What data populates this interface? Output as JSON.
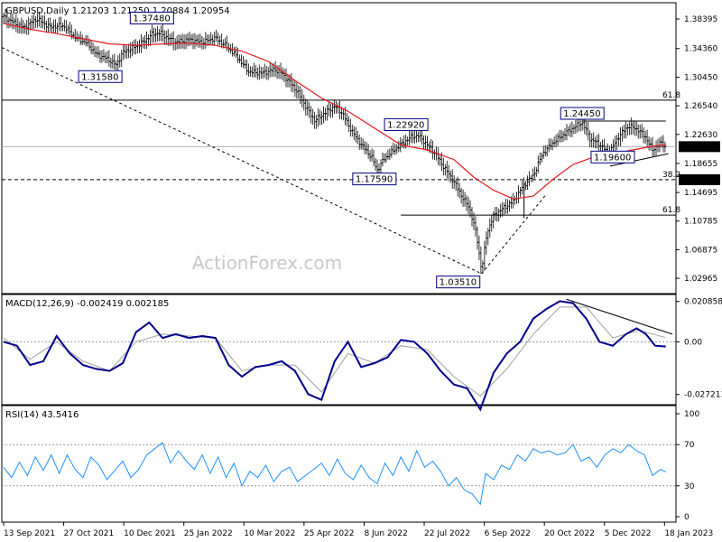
{
  "header": {
    "main_title": "GBPUSD,Daily  1.21203 1.21250 1.20884 1.20954",
    "macd_title": "MACD(12,26,9) -0.002419 0.002185",
    "rsi_title": "RSI(14) 43.5416"
  },
  "watermark": "ActionForex.com",
  "colors": {
    "price": "#000000",
    "ma": "#e31a1c",
    "macd_main": "#00008b",
    "macd_signal": "#a0a0a0",
    "rsi": "#1e90ff",
    "trend": "#000000",
    "current_badge_bg": "#000000",
    "label_border": "#000080"
  },
  "chart_data": [
    {
      "type": "line",
      "panel": "price",
      "title": "GBPUSD,Daily",
      "ylim": [
        1.01,
        1.405
      ],
      "y_ticks": [
        "1.38395",
        "1.34360",
        "1.30450",
        "1.26540",
        "1.22630",
        "1.18655",
        "1.14695",
        "1.10785",
        "1.06875",
        "1.02965"
      ],
      "x_ticks": [
        "13 Sep 2021",
        "27 Oct 2021",
        "10 Dec 2021",
        "25 Jan 2022",
        "10 Mar 2022",
        "25 Apr 2022",
        "8 Jun 2022",
        "22 Jul 2022",
        "6 Sep 2022",
        "20 Oct 2022",
        "5 Dec 2022",
        "18 Jan 2023"
      ],
      "x_range_days": [
        0,
        505
      ],
      "price_series": [
        [
          0,
          1.387
        ],
        [
          15,
          1.372
        ],
        [
          25,
          1.384
        ],
        [
          35,
          1.373
        ],
        [
          45,
          1.375
        ],
        [
          55,
          1.357
        ],
        [
          62,
          1.352
        ],
        [
          70,
          1.336
        ],
        [
          78,
          1.33
        ],
        [
          85,
          1.321
        ],
        [
          90,
          1.338
        ],
        [
          98,
          1.345
        ],
        [
          105,
          1.352
        ],
        [
          112,
          1.363
        ],
        [
          118,
          1.365
        ],
        [
          124,
          1.358
        ],
        [
          130,
          1.352
        ],
        [
          140,
          1.356
        ],
        [
          150,
          1.352
        ],
        [
          160,
          1.358
        ],
        [
          168,
          1.347
        ],
        [
          175,
          1.335
        ],
        [
          185,
          1.312
        ],
        [
          195,
          1.31
        ],
        [
          205,
          1.315
        ],
        [
          210,
          1.31
        ],
        [
          215,
          1.3
        ],
        [
          222,
          1.285
        ],
        [
          228,
          1.265
        ],
        [
          235,
          1.245
        ],
        [
          242,
          1.255
        ],
        [
          250,
          1.265
        ],
        [
          256,
          1.255
        ],
        [
          260,
          1.24
        ],
        [
          266,
          1.222
        ],
        [
          272,
          1.208
        ],
        [
          278,
          1.195
        ],
        [
          282,
          1.177
        ],
        [
          287,
          1.192
        ],
        [
          293,
          1.202
        ],
        [
          300,
          1.212
        ],
        [
          307,
          1.222
        ],
        [
          313,
          1.225
        ],
        [
          320,
          1.212
        ],
        [
          326,
          1.2
        ],
        [
          333,
          1.18
        ],
        [
          340,
          1.162
        ],
        [
          346,
          1.142
        ],
        [
          352,
          1.125
        ],
        [
          357,
          1.09
        ],
        [
          361,
          1.04
        ],
        [
          365,
          1.092
        ],
        [
          370,
          1.115
        ],
        [
          377,
          1.125
        ],
        [
          385,
          1.135
        ],
        [
          392,
          1.155
        ],
        [
          400,
          1.17
        ],
        [
          407,
          1.2
        ],
        [
          415,
          1.215
        ],
        [
          422,
          1.225
        ],
        [
          430,
          1.235
        ],
        [
          437,
          1.243
        ],
        [
          443,
          1.22
        ],
        [
          450,
          1.213
        ],
        [
          457,
          1.2
        ],
        [
          465,
          1.225
        ],
        [
          472,
          1.238
        ],
        [
          479,
          1.233
        ],
        [
          485,
          1.222
        ],
        [
          490,
          1.205
        ],
        [
          496,
          1.215
        ],
        [
          500,
          1.2095
        ]
      ],
      "moving_average": [
        [
          0,
          1.378
        ],
        [
          20,
          1.37
        ],
        [
          40,
          1.364
        ],
        [
          60,
          1.357
        ],
        [
          80,
          1.35
        ],
        [
          100,
          1.348
        ],
        [
          120,
          1.35
        ],
        [
          140,
          1.351
        ],
        [
          160,
          1.348
        ],
        [
          180,
          1.34
        ],
        [
          200,
          1.326
        ],
        [
          220,
          1.3
        ],
        [
          240,
          1.276
        ],
        [
          260,
          1.258
        ],
        [
          280,
          1.235
        ],
        [
          300,
          1.212
        ],
        [
          320,
          1.205
        ],
        [
          340,
          1.192
        ],
        [
          355,
          1.168
        ],
        [
          370,
          1.15
        ],
        [
          385,
          1.138
        ],
        [
          400,
          1.142
        ],
        [
          415,
          1.165
        ],
        [
          430,
          1.185
        ],
        [
          445,
          1.195
        ],
        [
          460,
          1.2
        ],
        [
          475,
          1.205
        ],
        [
          490,
          1.21
        ],
        [
          500,
          1.212
        ]
      ],
      "annotations": [
        {
          "text": "1.37480",
          "x": 112,
          "y": 1.3748
        },
        {
          "text": "1.31580",
          "x": 73,
          "y": 1.3158
        },
        {
          "text": "1.22920",
          "x": 304,
          "y": 1.2292
        },
        {
          "text": "1.17590",
          "x": 280,
          "y": 1.1759
        },
        {
          "text": "1.03510",
          "x": 361,
          "y": 1.0351
        },
        {
          "text": "1.24450",
          "x": 437,
          "y": 1.2445
        },
        {
          "text": "1.19600",
          "x": 460,
          "y": 1.196
        }
      ],
      "levels": [
        {
          "label": "61.8",
          "value": 1.273,
          "style": "solid"
        },
        {
          "label": "38.2",
          "value": 1.1644,
          "style": "dashed"
        },
        {
          "label": "61.8",
          "value": 1.116,
          "style": "solid"
        }
      ],
      "current_price": "1.20954",
      "level_badge": "1.16440"
    },
    {
      "type": "line",
      "panel": "macd",
      "title": "MACD(12,26,9)",
      "ylim": [
        -0.032,
        0.024
      ],
      "y_ticks": [
        "0.020858",
        "0.00",
        "-0.027213"
      ],
      "macd": [
        [
          0,
          0.0
        ],
        [
          10,
          -0.002
        ],
        [
          20,
          -0.012
        ],
        [
          30,
          -0.01
        ],
        [
          40,
          0.003
        ],
        [
          50,
          -0.006
        ],
        [
          60,
          -0.012
        ],
        [
          70,
          -0.014
        ],
        [
          80,
          -0.015
        ],
        [
          90,
          -0.011
        ],
        [
          100,
          0.005
        ],
        [
          110,
          0.01
        ],
        [
          120,
          0.002
        ],
        [
          130,
          0.004
        ],
        [
          140,
          0.002
        ],
        [
          150,
          0.003
        ],
        [
          160,
          0.002
        ],
        [
          170,
          -0.012
        ],
        [
          180,
          -0.018
        ],
        [
          190,
          -0.013
        ],
        [
          200,
          -0.012
        ],
        [
          210,
          -0.01
        ],
        [
          220,
          -0.015
        ],
        [
          230,
          -0.027
        ],
        [
          240,
          -0.03
        ],
        [
          250,
          -0.01
        ],
        [
          260,
          0.0
        ],
        [
          270,
          -0.013
        ],
        [
          280,
          -0.011
        ],
        [
          290,
          -0.008
        ],
        [
          300,
          0.001
        ],
        [
          310,
          0.0
        ],
        [
          320,
          -0.006
        ],
        [
          330,
          -0.015
        ],
        [
          340,
          -0.022
        ],
        [
          350,
          -0.024
        ],
        [
          360,
          -0.035
        ],
        [
          370,
          -0.016
        ],
        [
          380,
          -0.006
        ],
        [
          390,
          0.0
        ],
        [
          400,
          0.012
        ],
        [
          410,
          0.017
        ],
        [
          420,
          0.021
        ],
        [
          430,
          0.02
        ],
        [
          440,
          0.012
        ],
        [
          450,
          0.0
        ],
        [
          460,
          -0.002
        ],
        [
          470,
          0.004
        ],
        [
          478,
          0.007
        ],
        [
          485,
          0.004
        ],
        [
          492,
          -0.002
        ],
        [
          500,
          -0.0024
        ]
      ],
      "signal": [
        [
          0,
          0.002
        ],
        [
          20,
          -0.009
        ],
        [
          40,
          0.0
        ],
        [
          60,
          -0.01
        ],
        [
          80,
          -0.015
        ],
        [
          100,
          0.0
        ],
        [
          120,
          0.004
        ],
        [
          140,
          0.003
        ],
        [
          160,
          0.002
        ],
        [
          180,
          -0.015
        ],
        [
          200,
          -0.012
        ],
        [
          220,
          -0.012
        ],
        [
          240,
          -0.026
        ],
        [
          260,
          -0.006
        ],
        [
          280,
          -0.011
        ],
        [
          300,
          -0.002
        ],
        [
          320,
          -0.004
        ],
        [
          340,
          -0.018
        ],
        [
          360,
          -0.028
        ],
        [
          380,
          -0.014
        ],
        [
          400,
          0.004
        ],
        [
          420,
          0.018
        ],
        [
          440,
          0.018
        ],
        [
          460,
          0.002
        ],
        [
          480,
          0.006
        ],
        [
          500,
          0.0022
        ]
      ]
    },
    {
      "type": "line",
      "panel": "rsi",
      "title": "RSI(14)",
      "ylim": [
        0,
        100
      ],
      "y_ticks": [
        "100",
        "70",
        "30",
        "0"
      ],
      "rsi": [
        [
          0,
          48
        ],
        [
          6,
          38
        ],
        [
          12,
          53
        ],
        [
          18,
          40
        ],
        [
          24,
          58
        ],
        [
          30,
          45
        ],
        [
          36,
          60
        ],
        [
          42,
          42
        ],
        [
          48,
          60
        ],
        [
          54,
          46
        ],
        [
          60,
          38
        ],
        [
          66,
          58
        ],
        [
          72,
          50
        ],
        [
          78,
          36
        ],
        [
          84,
          45
        ],
        [
          90,
          54
        ],
        [
          96,
          38
        ],
        [
          102,
          46
        ],
        [
          108,
          60
        ],
        [
          114,
          66
        ],
        [
          120,
          72
        ],
        [
          126,
          52
        ],
        [
          132,
          64
        ],
        [
          138,
          54
        ],
        [
          144,
          46
        ],
        [
          150,
          60
        ],
        [
          156,
          42
        ],
        [
          162,
          58
        ],
        [
          168,
          38
        ],
        [
          174,
          52
        ],
        [
          180,
          30
        ],
        [
          186,
          44
        ],
        [
          192,
          38
        ],
        [
          198,
          50
        ],
        [
          204,
          34
        ],
        [
          210,
          44
        ],
        [
          216,
          48
        ],
        [
          222,
          34
        ],
        [
          228,
          40
        ],
        [
          234,
          46
        ],
        [
          240,
          52
        ],
        [
          246,
          40
        ],
        [
          252,
          56
        ],
        [
          258,
          42
        ],
        [
          264,
          36
        ],
        [
          270,
          50
        ],
        [
          276,
          38
        ],
        [
          282,
          32
        ],
        [
          288,
          52
        ],
        [
          294,
          40
        ],
        [
          300,
          58
        ],
        [
          306,
          44
        ],
        [
          312,
          64
        ],
        [
          318,
          48
        ],
        [
          324,
          54
        ],
        [
          330,
          44
        ],
        [
          336,
          30
        ],
        [
          342,
          38
        ],
        [
          348,
          26
        ],
        [
          354,
          22
        ],
        [
          360,
          12
        ],
        [
          364,
          42
        ],
        [
          370,
          36
        ],
        [
          376,
          50
        ],
        [
          382,
          46
        ],
        [
          388,
          60
        ],
        [
          394,
          54
        ],
        [
          400,
          66
        ],
        [
          406,
          62
        ],
        [
          412,
          64
        ],
        [
          418,
          60
        ],
        [
          424,
          62
        ],
        [
          430,
          70
        ],
        [
          436,
          54
        ],
        [
          442,
          58
        ],
        [
          448,
          48
        ],
        [
          454,
          60
        ],
        [
          460,
          66
        ],
        [
          466,
          62
        ],
        [
          472,
          70
        ],
        [
          478,
          64
        ],
        [
          484,
          60
        ],
        [
          490,
          40
        ],
        [
          496,
          46
        ],
        [
          500,
          43.5
        ]
      ]
    }
  ]
}
